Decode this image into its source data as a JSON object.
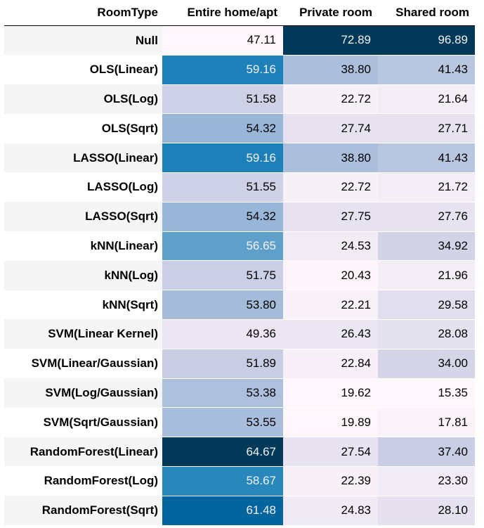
{
  "chart_data": {
    "type": "table",
    "index_header": "RoomType",
    "columns": [
      "Entire home/apt",
      "Private room",
      "Shared room"
    ],
    "rows": [
      {
        "label": "Null",
        "values": [
          47.11,
          72.89,
          96.89
        ]
      },
      {
        "label": "OLS(Linear)",
        "values": [
          59.16,
          38.8,
          41.43
        ]
      },
      {
        "label": "OLS(Log)",
        "values": [
          51.58,
          22.72,
          21.64
        ]
      },
      {
        "label": "OLS(Sqrt)",
        "values": [
          54.32,
          27.74,
          27.71
        ]
      },
      {
        "label": "LASSO(Linear)",
        "values": [
          59.16,
          38.8,
          41.43
        ]
      },
      {
        "label": "LASSO(Log)",
        "values": [
          51.55,
          22.72,
          21.72
        ]
      },
      {
        "label": "LASSO(Sqrt)",
        "values": [
          54.32,
          27.75,
          27.76
        ]
      },
      {
        "label": "kNN(Linear)",
        "values": [
          56.65,
          24.53,
          34.92
        ]
      },
      {
        "label": "kNN(Log)",
        "values": [
          51.75,
          20.43,
          21.96
        ]
      },
      {
        "label": "kNN(Sqrt)",
        "values": [
          53.8,
          22.21,
          29.58
        ]
      },
      {
        "label": "SVM(Linear Kernel)",
        "values": [
          49.36,
          26.43,
          28.08
        ]
      },
      {
        "label": "SVM(Linear/Gaussian)",
        "values": [
          51.89,
          22.84,
          34.0
        ]
      },
      {
        "label": "SVM(Log/Gaussian)",
        "values": [
          53.38,
          19.62,
          15.35
        ]
      },
      {
        "label": "SVM(Sqrt/Gaussian)",
        "values": [
          53.55,
          19.89,
          17.81
        ]
      },
      {
        "label": "RandomForest(Linear)",
        "values": [
          64.67,
          27.54,
          37.4
        ]
      },
      {
        "label": "RandomForest(Log)",
        "values": [
          58.67,
          22.39,
          23.3
        ]
      },
      {
        "label": "RandomForest(Sqrt)",
        "values": [
          61.48,
          24.83,
          28.1
        ]
      }
    ],
    "colormap": "PuBu",
    "colormap_stops": [
      "#fff7fb",
      "#ece7f2",
      "#d0d1e6",
      "#a6bddb",
      "#74a9cf",
      "#3690c0",
      "#0570b0",
      "#045a8d",
      "#023858"
    ],
    "color_scale": "per-column"
  }
}
